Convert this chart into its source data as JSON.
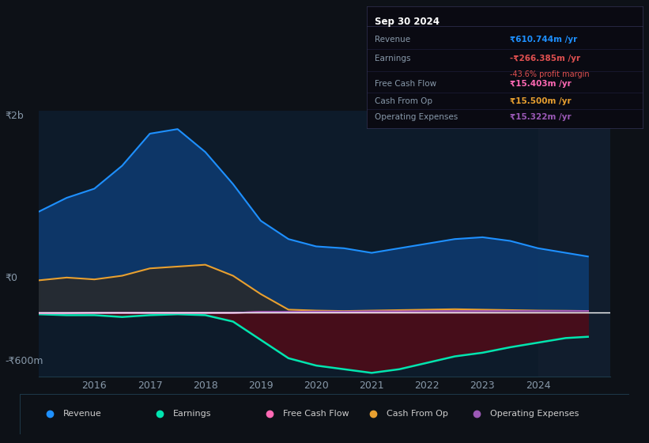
{
  "bg_color": "#0d1117",
  "plot_bg_color": "#0d1b2a",
  "grid_color": "#1e3a4a",
  "zero_line_color": "#ffffff",
  "ylabel_2b": "₹2b",
  "ylabel_0": "₹0",
  "ylabel_neg600": "-₹600m",
  "ylim": [
    -700,
    2200
  ],
  "xlim_start": 2015.0,
  "xlim_end": 2025.3,
  "years": [
    2015.0,
    2015.5,
    2016.0,
    2016.5,
    2017.0,
    2017.5,
    2018.0,
    2018.5,
    2019.0,
    2019.5,
    2020.0,
    2020.5,
    2021.0,
    2021.5,
    2022.0,
    2022.5,
    2023.0,
    2023.5,
    2024.0,
    2024.5,
    2024.9
  ],
  "revenue": [
    1100,
    1250,
    1350,
    1600,
    1950,
    2000,
    1750,
    1400,
    1000,
    800,
    720,
    700,
    650,
    700,
    750,
    800,
    820,
    780,
    700,
    650,
    610
  ],
  "earnings": [
    -20,
    -30,
    -30,
    -50,
    -30,
    -20,
    -30,
    -100,
    -300,
    -500,
    -580,
    -620,
    -660,
    -620,
    -550,
    -480,
    -440,
    -380,
    -330,
    -280,
    -266
  ],
  "cash_from_op": [
    350,
    380,
    360,
    400,
    480,
    500,
    520,
    400,
    200,
    30,
    20,
    15,
    20,
    25,
    30,
    35,
    30,
    25,
    20,
    18,
    15.5
  ],
  "free_cash_flow": [
    -10,
    -10,
    -5,
    -5,
    -5,
    -5,
    -5,
    -5,
    5,
    5,
    5,
    5,
    10,
    10,
    12,
    12,
    13,
    14,
    14,
    15,
    15.4
  ],
  "operating_expenses": [
    -5,
    -5,
    -5,
    -5,
    -5,
    -5,
    -5,
    -5,
    5,
    8,
    10,
    10,
    12,
    12,
    13,
    14,
    14,
    15,
    15,
    15,
    15.3
  ],
  "revenue_color": "#1e90ff",
  "revenue_fill": "#0d3a6e",
  "earnings_color": "#00e5b0",
  "earnings_fill_neg": "#4a0d1a",
  "cash_from_op_color": "#e8a030",
  "cash_from_op_fill": "#2a2a2a",
  "free_cash_flow_color": "#ff69b4",
  "operating_expenses_color": "#9b59b6",
  "x_ticks": [
    2016,
    2017,
    2018,
    2019,
    2020,
    2021,
    2022,
    2023,
    2024
  ],
  "legend_items": [
    "Revenue",
    "Earnings",
    "Free Cash Flow",
    "Cash From Op",
    "Operating Expenses"
  ],
  "legend_colors": [
    "#1e90ff",
    "#00e5b0",
    "#ff69b4",
    "#e8a030",
    "#9b59b6"
  ],
  "info_box": {
    "date": "Sep 30 2024",
    "rows": [
      {
        "label": "Revenue",
        "value": "₹610.744m /yr",
        "value_color": "#1e90ff"
      },
      {
        "label": "Earnings",
        "value": "-₹266.385m /yr",
        "value_color": "#e05050",
        "extra": "-43.6% profit margin",
        "extra_color": "#e05050"
      },
      {
        "label": "Free Cash Flow",
        "value": "₹15.403m /yr",
        "value_color": "#ff69b4"
      },
      {
        "label": "Cash From Op",
        "value": "₹15.500m /yr",
        "value_color": "#e8a030"
      },
      {
        "label": "Operating Expenses",
        "value": "₹15.322m /yr",
        "value_color": "#9b59b6"
      }
    ]
  }
}
